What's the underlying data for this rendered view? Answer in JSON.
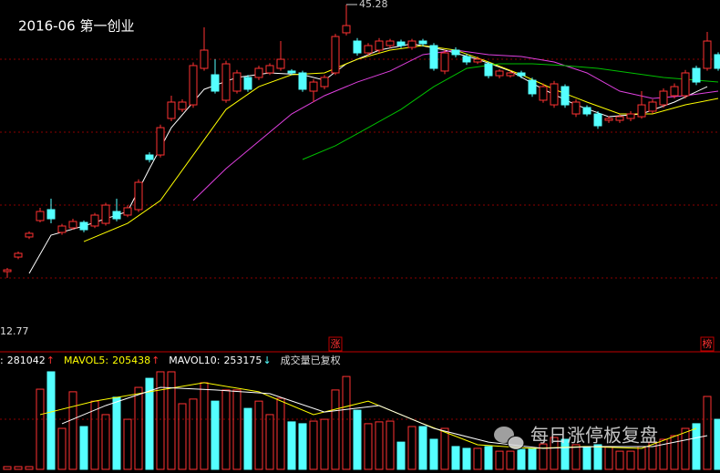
{
  "chart_data": [
    {
      "type": "candlestick",
      "title": "2016-06 第一创业",
      "ylim": [
        4.09,
        45.82
      ],
      "up_color": "#ff3232",
      "down_color": "#54ffff",
      "high_label": 45.28,
      "low_label": 12.77,
      "markers": [
        "涨",
        "榜"
      ],
      "ohlc": [
        [
          13.52,
          13.95,
          12.77,
          13.73
        ],
        [
          15.25,
          15.9,
          15.0,
          15.69
        ],
        [
          17.64,
          18.3,
          17.4,
          18.07
        ],
        [
          19.59,
          21.11,
          19.37,
          20.67
        ],
        [
          20.89,
          22.19,
          19.26,
          19.8
        ],
        [
          18.18,
          19.2,
          17.9,
          18.94
        ],
        [
          18.72,
          19.8,
          18.5,
          19.48
        ],
        [
          19.37,
          19.6,
          18.2,
          18.5
        ],
        [
          18.94,
          20.5,
          18.7,
          20.24
        ],
        [
          19.26,
          21.7,
          19.0,
          21.43
        ],
        [
          20.67,
          22.19,
          19.5,
          19.8
        ],
        [
          20.24,
          21.4,
          20.0,
          21.11
        ],
        [
          20.89,
          24.5,
          20.6,
          24.14
        ],
        [
          27.39,
          27.7,
          26.5,
          26.85
        ],
        [
          27.39,
          31.0,
          27.1,
          30.64
        ],
        [
          31.73,
          34.44,
          31.4,
          33.68
        ],
        [
          32.81,
          34.0,
          32.5,
          33.68
        ],
        [
          33.35,
          38.4,
          33.0,
          38.02
        ],
        [
          37.69,
          42.57,
          37.4,
          39.86
        ],
        [
          36.93,
          38.77,
          34.7,
          34.98
        ],
        [
          33.9,
          38.6,
          33.6,
          38.23
        ],
        [
          34.98,
          37.5,
          34.7,
          37.15
        ],
        [
          36.61,
          36.9,
          34.9,
          35.2
        ],
        [
          36.61,
          38.0,
          36.3,
          37.69
        ],
        [
          37.15,
          38.3,
          36.9,
          38.02
        ],
        [
          37.69,
          40.94,
          37.4,
          38.77
        ],
        [
          37.37,
          37.6,
          36.9,
          37.15
        ],
        [
          37.15,
          37.4,
          34.9,
          35.2
        ],
        [
          34.98,
          36.4,
          33.68,
          36.06
        ],
        [
          35.52,
          36.9,
          35.2,
          36.61
        ],
        [
          37.15,
          41.8,
          36.9,
          41.48
        ],
        [
          41.92,
          45.28,
          41.6,
          42.78
        ],
        [
          40.94,
          41.3,
          39.2,
          39.53
        ],
        [
          39.53,
          40.7,
          39.2,
          40.4
        ],
        [
          39.86,
          41.3,
          39.5,
          40.94
        ],
        [
          40.4,
          41.2,
          40.1,
          40.94
        ],
        [
          40.83,
          41.1,
          40.1,
          40.4
        ],
        [
          40.18,
          41.2,
          39.9,
          40.94
        ],
        [
          40.94,
          41.2,
          40.3,
          40.62
        ],
        [
          40.4,
          40.7,
          37.4,
          37.69
        ],
        [
          37.37,
          39.9,
          37.0,
          39.53
        ],
        [
          39.86,
          40.2,
          39.0,
          39.32
        ],
        [
          39.1,
          39.4,
          38.1,
          38.45
        ],
        [
          38.45,
          39.1,
          38.2,
          38.77
        ],
        [
          38.23,
          38.5,
          36.5,
          36.82
        ],
        [
          36.82,
          37.6,
          36.5,
          37.37
        ],
        [
          36.82,
          37.4,
          36.6,
          37.15
        ],
        [
          37.15,
          37.4,
          36.5,
          36.82
        ],
        [
          36.28,
          36.6,
          34.3,
          34.66
        ],
        [
          33.9,
          35.9,
          33.6,
          35.52
        ],
        [
          33.35,
          36.2,
          33.0,
          35.85
        ],
        [
          35.52,
          35.8,
          33.0,
          33.35
        ],
        [
          32.27,
          34.0,
          31.9,
          33.68
        ],
        [
          33.03,
          33.3,
          32.0,
          32.27
        ],
        [
          32.27,
          32.6,
          30.5,
          30.86
        ],
        [
          31.51,
          32.0,
          31.2,
          31.73
        ],
        [
          31.51,
          32.2,
          31.2,
          31.94
        ],
        [
          31.73,
          32.6,
          31.4,
          32.27
        ],
        [
          31.94,
          34.98,
          31.7,
          33.35
        ],
        [
          32.6,
          34.0,
          32.3,
          33.68
        ],
        [
          33.35,
          35.3,
          33.0,
          34.98
        ],
        [
          34.44,
          35.9,
          34.1,
          35.52
        ],
        [
          34.44,
          37.5,
          34.1,
          37.15
        ],
        [
          37.69,
          38.0,
          35.7,
          36.06
        ],
        [
          37.69,
          42.03,
          37.4,
          40.94
        ],
        [
          39.32,
          39.6,
          37.4,
          37.69
        ]
      ],
      "ma_lines": [
        {
          "color": "#ffffff",
          "x": [
            3,
            5,
            8,
            12,
            14,
            16,
            19,
            22,
            25,
            28,
            30,
            32,
            35,
            38,
            41,
            44,
            47,
            50,
            53,
            56,
            59,
            62,
            65
          ],
          "values": [
            13.3,
            17.85,
            18.94,
            20.67,
            25.77,
            30.64,
            35.2,
            36.61,
            37.15,
            36.93,
            36.28,
            38.23,
            39.86,
            40.62,
            39.86,
            38.77,
            37.37,
            35.2,
            33.35,
            31.94,
            32.27,
            33.68,
            35.52
          ]
        },
        {
          "color": "#ffff00",
          "x": [
            8,
            12,
            15,
            18,
            21,
            24,
            27,
            30,
            33,
            36,
            39,
            42,
            45,
            48,
            51,
            54,
            57,
            60,
            63,
            66
          ],
          "values": [
            17.09,
            19.26,
            21.97,
            27.39,
            32.81,
            35.52,
            36.93,
            37.15,
            38.77,
            39.86,
            40.4,
            39.86,
            38.45,
            36.93,
            35.2,
            33.68,
            32.27,
            32.27,
            33.35,
            34.11
          ]
        },
        {
          "color": "#e040e0",
          "x": [
            18,
            21,
            24,
            27,
            30,
            33,
            36,
            39,
            42,
            45,
            48,
            51,
            54,
            57,
            60,
            63,
            66
          ],
          "values": [
            21.97,
            25.77,
            29.02,
            32.27,
            34.44,
            36.06,
            37.37,
            39.32,
            39.86,
            39.32,
            39.1,
            38.45,
            37.15,
            34.98,
            34.11,
            34.44,
            34.98
          ]
        },
        {
          "color": "#00c000",
          "x": [
            28,
            31,
            34,
            37,
            40,
            43,
            46,
            49,
            52,
            55,
            58,
            61,
            64,
            66
          ],
          "values": [
            26.85,
            28.48,
            30.64,
            32.81,
            35.52,
            37.69,
            38.23,
            38.23,
            38.02,
            37.69,
            37.15,
            36.61,
            36.28,
            36.06
          ]
        }
      ]
    },
    {
      "type": "bar",
      "ylim": [
        0,
        404000
      ],
      "values": [
        10500,
        10500,
        10500,
        309000,
        376000,
        158000,
        299000,
        165000,
        263000,
        211000,
        278000,
        193000,
        316000,
        351000,
        376000,
        376000,
        253000,
        271000,
        334000,
        263000,
        306000,
        306000,
        235000,
        263000,
        211000,
        274000,
        183000,
        176000,
        186000,
        193000,
        306000,
        358000,
        228000,
        176000,
        183000,
        186000,
        105000,
        165000,
        165000,
        116000,
        158000,
        88000,
        81000,
        81000,
        88000,
        70000,
        70000,
        77000,
        81000,
        98000,
        123000,
        116000,
        95000,
        88000,
        95000,
        88000,
        70000,
        70000,
        88000,
        105000,
        116000,
        130000,
        158000,
        176000,
        281042,
        193000
      ],
      "legend": [
        {
          "label": ":",
          "value": 281042,
          "arrow": "↑",
          "color": "#ffffff",
          "arrow_color": "#ff3232"
        },
        {
          "label": "MAVOL5:",
          "value": 205438,
          "arrow": "↑",
          "color": "#ffff00",
          "arrow_color": "#ff3232"
        },
        {
          "label": "MAVOL10:",
          "value": 253175,
          "arrow": "↓",
          "color": "#ffffff",
          "arrow_color": "#54ffff"
        }
      ],
      "note": "成交量已复权",
      "ma_lines": [
        {
          "color": "#ffff00",
          "x": [
            4,
            9,
            14,
            19,
            24,
            29,
            34,
            39,
            44,
            49,
            54,
            59,
            64
          ],
          "values": [
            211000,
            263000,
            299000,
            334000,
            299000,
            211000,
            263000,
            176000,
            95000,
            81000,
            88000,
            81000,
            158000
          ]
        },
        {
          "color": "#ffffff",
          "x": [
            6,
            10,
            15,
            20,
            25,
            30,
            35,
            40,
            45,
            50,
            55,
            60,
            65
          ],
          "values": [
            176000,
            246000,
            316000,
            306000,
            292000,
            221000,
            246000,
            158000,
            105000,
            81000,
            88000,
            88000,
            130000
          ]
        }
      ]
    },
    {
      "type": "watermark",
      "text": "每日涨停板复盘"
    }
  ]
}
